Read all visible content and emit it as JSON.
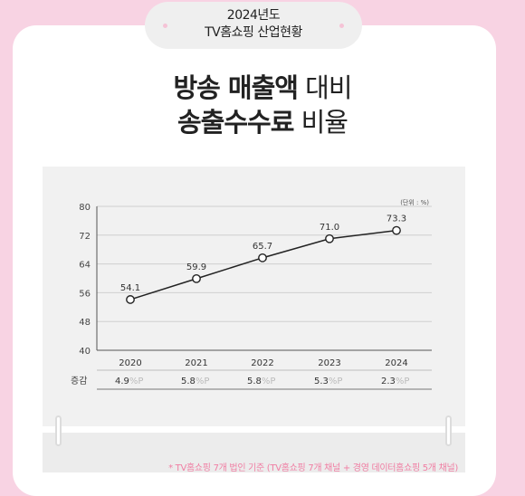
{
  "badge": {
    "line1": "2024년도",
    "line2": "TV홈쇼핑 산업현황"
  },
  "title": {
    "line1_bold": "방송 매출액",
    "line1_light": "대비",
    "line2_bold": "송출수수료",
    "line2_light": "비율"
  },
  "chart_data": {
    "type": "line",
    "unit_label": "(단위 : %)",
    "x": [
      "2020",
      "2021",
      "2022",
      "2023",
      "2024"
    ],
    "y": [
      54.1,
      59.9,
      65.7,
      71.0,
      73.3
    ],
    "data_labels": [
      "54.1",
      "59.9",
      "65.7",
      "71.0",
      "73.3"
    ],
    "yticks": [
      "40",
      "48",
      "56",
      "64",
      "72",
      "80"
    ],
    "ylim": [
      40,
      80
    ],
    "grid": true,
    "line_color": "#222222",
    "change_row": {
      "label": "증감",
      "values": [
        "4.9",
        "5.8",
        "5.8",
        "5.3",
        "2.3"
      ],
      "suffix": "%P"
    }
  },
  "footnote": "* TV홈쇼핑 7개 법인 기준 (TV홈쇼핑 7개 채널 + 경영 데이터홈쇼핑 5개 채널)",
  "colors": {
    "background": "#f8d3e3",
    "accent": "#f07ea3",
    "panel": "#f1f1f1"
  }
}
